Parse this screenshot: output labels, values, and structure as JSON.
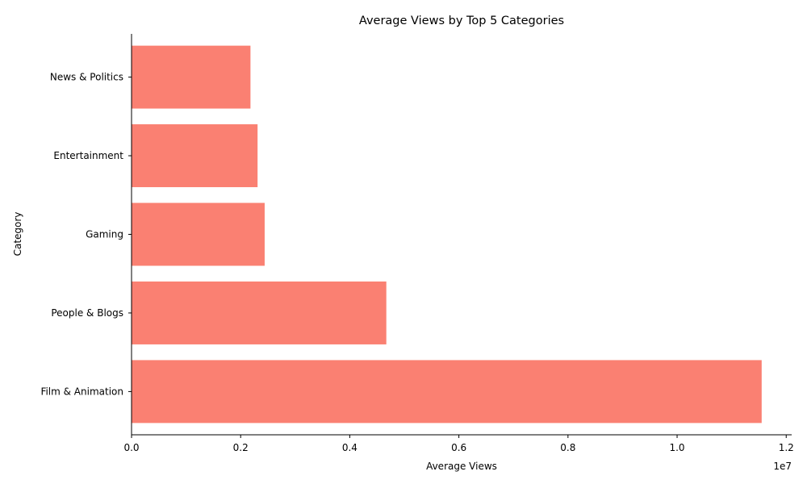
{
  "chart_data": {
    "type": "bar",
    "orientation": "horizontal",
    "title": "Average Views by Top 5 Categories",
    "xlabel": "Average Views",
    "ylabel": "Category",
    "categories": [
      "Film & Animation",
      "People & Blogs",
      "Gaming",
      "Entertainment",
      "News & Politics"
    ],
    "values": [
      11550000,
      4670000,
      2440000,
      2310000,
      2180000
    ],
    "xlim": [
      0,
      12100000
    ],
    "x_ticks": [
      0,
      2000000,
      4000000,
      6000000,
      8000000,
      10000000,
      12000000
    ],
    "x_tick_labels": [
      "0.0",
      "0.2",
      "0.4",
      "0.6",
      "0.8",
      "1.0",
      "1.2"
    ],
    "x_offset_label": "1e7",
    "bar_color": "#fa8072",
    "grid": false,
    "legend": "none"
  }
}
